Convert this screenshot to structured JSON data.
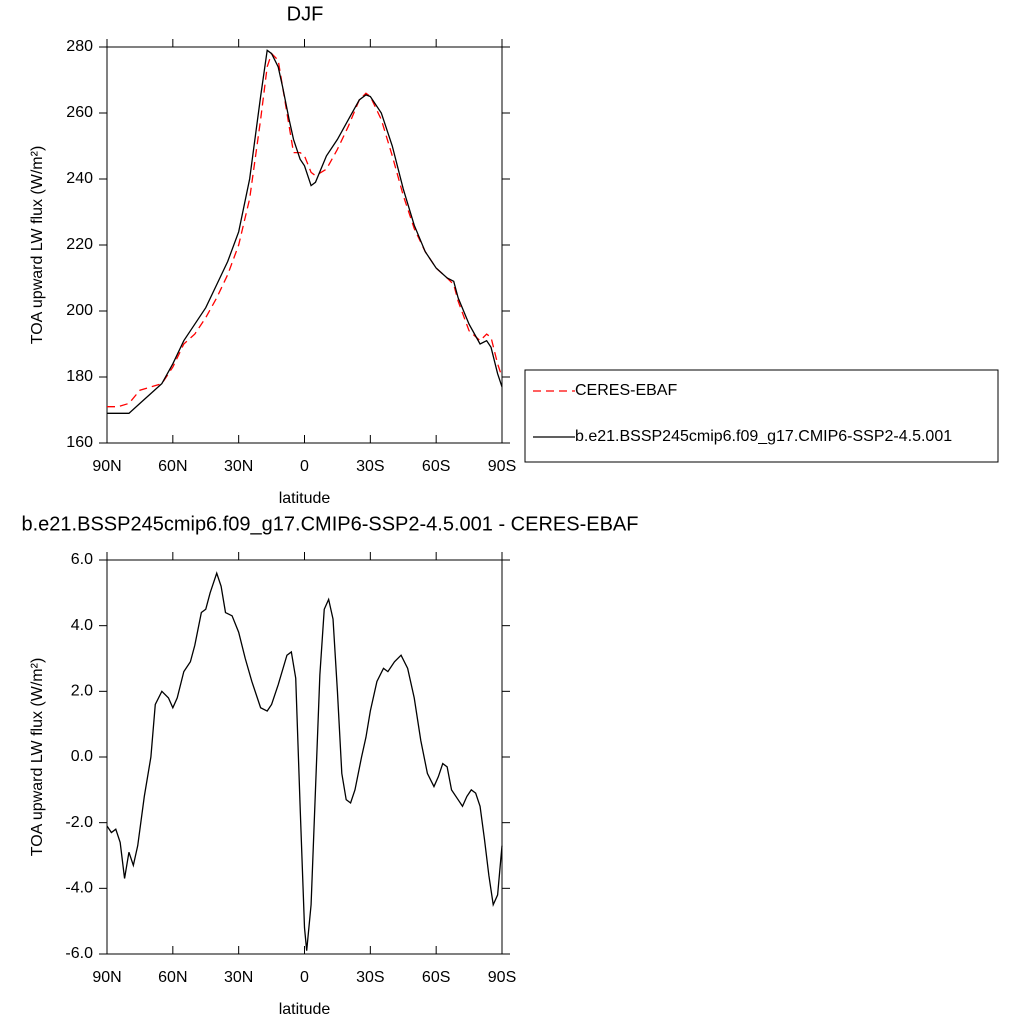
{
  "chart_data": [
    {
      "type": "line",
      "title": "DJF",
      "x_label": "latitude",
      "y_label": "TOA upward LW flux (W/m²)",
      "xlim": [
        90,
        -90
      ],
      "xticks": [
        {
          "value": 90,
          "label": "90N"
        },
        {
          "value": 60,
          "label": "60N"
        },
        {
          "value": 30,
          "label": "30N"
        },
        0,
        {
          "value": -30,
          "label": "30S"
        },
        {
          "value": -60,
          "label": "60S"
        },
        {
          "value": -90,
          "label": "90S"
        }
      ],
      "ylim": [
        160,
        280
      ],
      "yticks": [
        160,
        180,
        200,
        220,
        240,
        260,
        280
      ],
      "legend": "right",
      "x": [
        90,
        85,
        80,
        75,
        70,
        65,
        60,
        55,
        50,
        45,
        40,
        35,
        30,
        25,
        20,
        17,
        15,
        12,
        10,
        7,
        5,
        2,
        0,
        -3,
        -5,
        -10,
        -15,
        -20,
        -25,
        -28,
        -30,
        -35,
        -40,
        -45,
        -50,
        -55,
        -60,
        -65,
        -68,
        -70,
        -75,
        -80,
        -83,
        -85,
        -88,
        -90
      ],
      "series": [
        {
          "name": "CERES-EBAF",
          "color": "#ff0000",
          "dashed": true,
          "values": [
            171,
            171,
            172,
            176,
            177,
            178,
            183,
            190,
            193,
            198,
            204,
            211,
            220,
            234,
            258,
            274,
            278,
            276,
            268,
            256,
            248,
            248,
            247,
            242,
            241,
            243,
            249,
            256,
            264,
            266,
            265,
            258,
            247,
            235,
            225,
            218,
            213,
            210,
            208,
            203,
            194,
            191,
            193,
            192,
            184,
            180
          ]
        },
        {
          "name": "b.e21.BSSP245cmip6.f09_g17.CMIP6-SSP2-4.5.001",
          "color": "#000000",
          "dashed": false,
          "values": [
            169,
            169,
            169,
            172,
            175,
            178,
            184,
            191,
            196,
            201,
            208,
            215,
            224,
            240,
            265,
            279,
            278,
            274,
            268,
            258,
            252,
            246,
            244,
            238,
            239,
            247,
            252,
            258,
            264,
            265.5,
            265,
            260,
            250,
            237,
            226,
            218,
            213,
            210,
            209,
            204,
            196,
            190,
            191,
            189,
            181,
            177
          ]
        }
      ]
    },
    {
      "type": "line",
      "title": "b.e21.BSSP245cmip6.f09_g17.CMIP6-SSP2-4.5.001 - CERES-EBAF",
      "x_label": "latitude",
      "y_label": "TOA upward LW flux (W/m²)",
      "xlim": [
        90,
        -90
      ],
      "xticks": [
        {
          "value": 90,
          "label": "90N"
        },
        {
          "value": 60,
          "label": "60N"
        },
        {
          "value": 30,
          "label": "30N"
        },
        0,
        {
          "value": -30,
          "label": "30S"
        },
        {
          "value": -60,
          "label": "60S"
        },
        {
          "value": -90,
          "label": "90S"
        }
      ],
      "ylim": [
        -6,
        6
      ],
      "yticks": [
        {
          "value": -6,
          "label": "-6.0"
        },
        {
          "value": -4,
          "label": "-4.0"
        },
        {
          "value": -2,
          "label": "-2.0"
        },
        {
          "value": 0,
          "label": "0.0"
        },
        {
          "value": 2,
          "label": "2.0"
        },
        {
          "value": 4,
          "label": "4.0"
        },
        {
          "value": 6,
          "label": "6.0"
        }
      ],
      "x": [
        90,
        88,
        86,
        84,
        82,
        80,
        78,
        76,
        73,
        70,
        68,
        65,
        62,
        60,
        58,
        55,
        52,
        50,
        47,
        45,
        43,
        40,
        38,
        36,
        33,
        30,
        27,
        24,
        20,
        17,
        15,
        12,
        8,
        6,
        4,
        2,
        0,
        -1,
        -3,
        -5,
        -7,
        -9,
        -11,
        -13,
        -15,
        -17,
        -19,
        -21,
        -23,
        -26,
        -28,
        -30,
        -33,
        -36,
        -38,
        -41,
        -44,
        -47,
        -50,
        -53,
        -56,
        -59,
        -61,
        -63,
        -65,
        -67,
        -70,
        -72,
        -74,
        -76,
        -78,
        -80,
        -82,
        -84,
        -86,
        -88,
        -90
      ],
      "series": [
        {
          "color": "#000000",
          "dashed": false,
          "values": [
            -2.1,
            -2.3,
            -2.2,
            -2.6,
            -3.7,
            -2.9,
            -3.3,
            -2.7,
            -1.2,
            0,
            1.6,
            2.0,
            1.8,
            1.5,
            1.8,
            2.6,
            2.9,
            3.4,
            4.4,
            4.5,
            5.0,
            5.6,
            5.2,
            4.4,
            4.3,
            3.8,
            3.0,
            2.3,
            1.5,
            1.4,
            1.6,
            2.2,
            3.1,
            3.2,
            2.4,
            -1.5,
            -5.2,
            -5.9,
            -4.5,
            -1,
            2.5,
            4.5,
            4.8,
            4.2,
            2.0,
            -0.5,
            -1.3,
            -1.4,
            -1.0,
            0,
            0.6,
            1.4,
            2.3,
            2.7,
            2.6,
            2.9,
            3.1,
            2.7,
            1.8,
            0.5,
            -0.5,
            -0.9,
            -0.6,
            -0.2,
            -0.3,
            -1.0,
            -1.3,
            -1.5,
            -1.2,
            -1.0,
            -1.1,
            -1.5,
            -2.5,
            -3.6,
            -4.5,
            -4.2,
            -2.7
          ]
        }
      ]
    }
  ]
}
